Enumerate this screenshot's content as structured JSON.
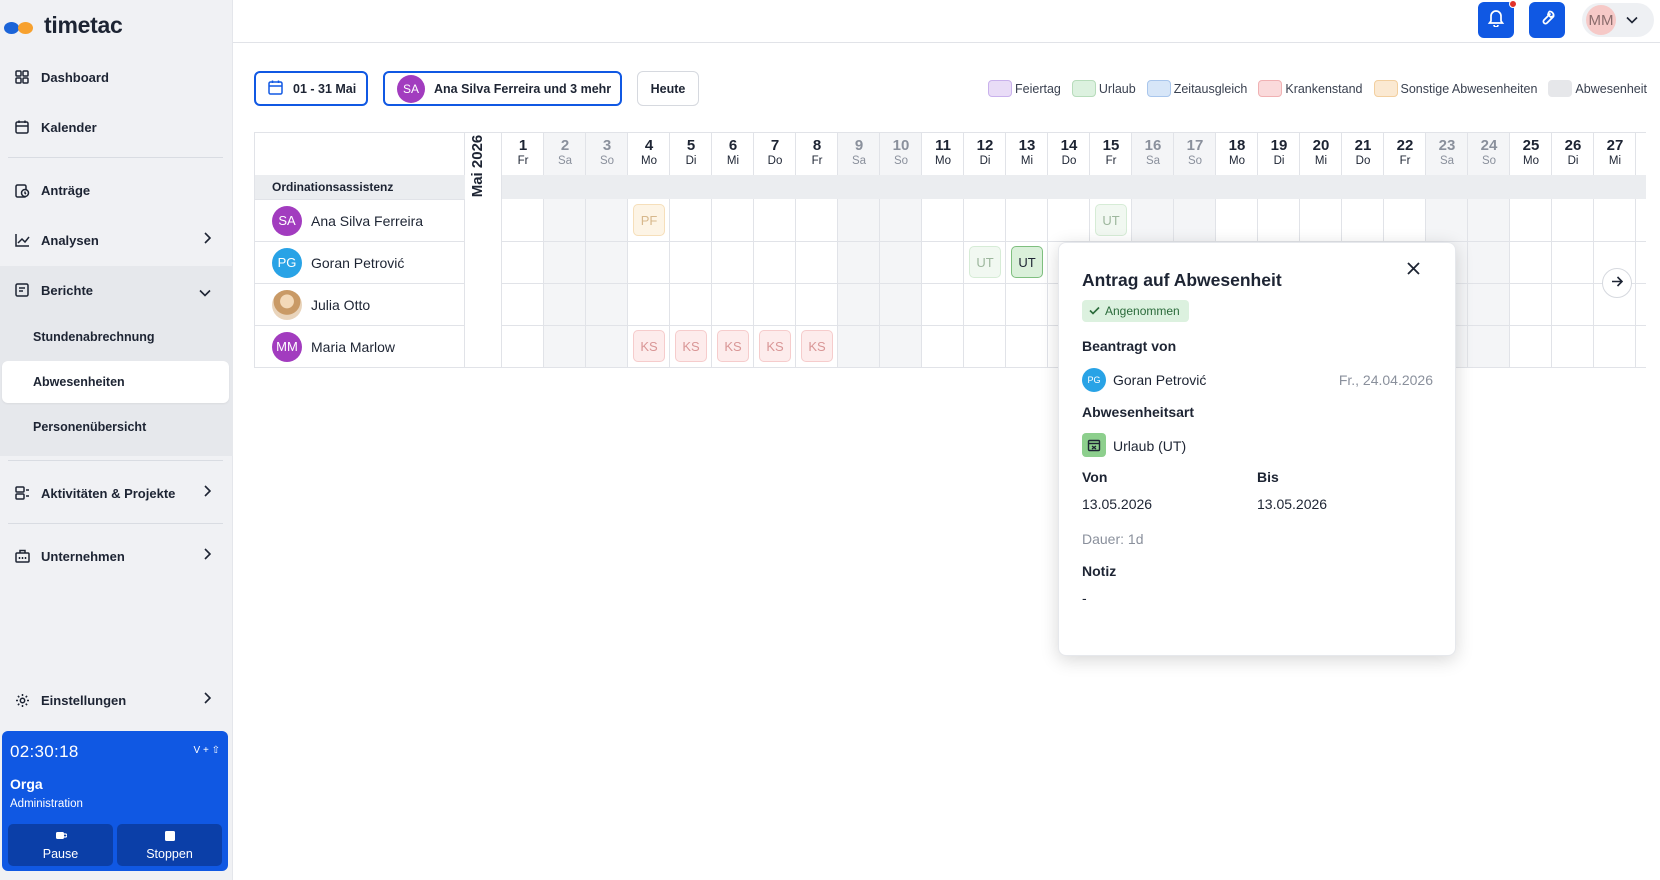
{
  "app": {
    "logo_text": "timetac"
  },
  "colors": {
    "accent": "#1058e3",
    "feiertag": "#e9dcf7",
    "urlaub": "#dcf1df",
    "zeitausgleich": "#d7e6f8",
    "krankenstand": "#fadadb",
    "sonstige": "#fbe9d2",
    "abwesenheit": "#e6e7ea"
  },
  "sidebar": {
    "items": [
      {
        "label": "Dashboard",
        "icon": "dashboard-icon"
      },
      {
        "label": "Kalender",
        "icon": "calendar-icon"
      },
      {
        "label": "Anträge",
        "icon": "requests-icon"
      },
      {
        "label": "Analysen",
        "icon": "chart-icon"
      },
      {
        "label": "Berichte",
        "icon": "report-icon"
      },
      {
        "label": "Aktivitäten & Projekte",
        "icon": "activities-icon"
      },
      {
        "label": "Unternehmen",
        "icon": "building-icon"
      },
      {
        "label": "Einstellungen",
        "icon": "gear-icon"
      }
    ],
    "berichte_sub": [
      {
        "label": "Stundenabrechnung"
      },
      {
        "label": "Abwesenheiten",
        "active": true
      },
      {
        "label": "Personenübersicht"
      }
    ]
  },
  "timer": {
    "time": "02:30:18",
    "shortcut": "V + ⇧",
    "org": "Orga",
    "role": "Administration",
    "pause_label": "Pause",
    "stop_label": "Stoppen"
  },
  "topbar": {
    "user_initials": "MM"
  },
  "filters": {
    "date_range": "01 - 31 Mai",
    "person_initials": "SA",
    "person_label": "Ana Silva Ferreira und 3 mehr",
    "today_label": "Heute"
  },
  "legend": [
    {
      "label": "Feiertag",
      "fill": "#e9dcf7",
      "border": "#c9b1ec"
    },
    {
      "label": "Urlaub",
      "fill": "#dcf1df",
      "border": "#b7dcbb"
    },
    {
      "label": "Zeitausgleich",
      "fill": "#d7e6f8",
      "border": "#a9c6ec"
    },
    {
      "label": "Krankenstand",
      "fill": "#fadadb",
      "border": "#f0b1b3"
    },
    {
      "label": "Sonstige Abwesenheiten",
      "fill": "#fbe9d2",
      "border": "#f2cf9f"
    },
    {
      "label": "Abwesenheit",
      "fill": "#e6e7ea",
      "border": "#e6e7ea"
    }
  ],
  "calendar": {
    "month_label": "Mai 2026",
    "group_label": "Ordinationsassistenz",
    "days": [
      {
        "n": "1",
        "wd": "Fr"
      },
      {
        "n": "2",
        "wd": "Sa",
        "we": true
      },
      {
        "n": "3",
        "wd": "So",
        "we": true
      },
      {
        "n": "4",
        "wd": "Mo"
      },
      {
        "n": "5",
        "wd": "Di"
      },
      {
        "n": "6",
        "wd": "Mi"
      },
      {
        "n": "7",
        "wd": "Do"
      },
      {
        "n": "8",
        "wd": "Fr"
      },
      {
        "n": "9",
        "wd": "Sa",
        "we": true
      },
      {
        "n": "10",
        "wd": "So",
        "we": true
      },
      {
        "n": "11",
        "wd": "Mo"
      },
      {
        "n": "12",
        "wd": "Di"
      },
      {
        "n": "13",
        "wd": "Mi"
      },
      {
        "n": "14",
        "wd": "Do"
      },
      {
        "n": "15",
        "wd": "Fr"
      },
      {
        "n": "16",
        "wd": "Sa",
        "we": true
      },
      {
        "n": "17",
        "wd": "So",
        "we": true
      },
      {
        "n": "18",
        "wd": "Mo"
      },
      {
        "n": "19",
        "wd": "Di"
      },
      {
        "n": "20",
        "wd": "Mi"
      },
      {
        "n": "21",
        "wd": "Do"
      },
      {
        "n": "22",
        "wd": "Fr"
      },
      {
        "n": "23",
        "wd": "Sa",
        "we": true
      },
      {
        "n": "24",
        "wd": "So",
        "we": true
      },
      {
        "n": "25",
        "wd": "Mo"
      },
      {
        "n": "26",
        "wd": "Di"
      },
      {
        "n": "27",
        "wd": "Mi"
      }
    ],
    "people": [
      {
        "initials": "SA",
        "name": "Ana Silva Ferreira",
        "color": "#a23cbf"
      },
      {
        "initials": "PG",
        "name": "Goran Petrović",
        "color": "#29a3e6"
      },
      {
        "initials": "",
        "name": "Julia Otto",
        "color": "#d9b48a"
      },
      {
        "initials": "MM",
        "name": "Maria Marlow",
        "color": "#a23cbf"
      }
    ],
    "entries": [
      {
        "person": 0,
        "day": 4,
        "code": "PF",
        "style": "pf"
      },
      {
        "person": 0,
        "day": 15,
        "code": "UT",
        "style": "ut-faded"
      },
      {
        "person": 1,
        "day": 12,
        "code": "UT",
        "style": "ut-faded"
      },
      {
        "person": 1,
        "day": 13,
        "code": "UT",
        "style": "ut-strong"
      },
      {
        "person": 3,
        "day": 4,
        "code": "KS",
        "style": "ks"
      },
      {
        "person": 3,
        "day": 5,
        "code": "KS",
        "style": "ks"
      },
      {
        "person": 3,
        "day": 6,
        "code": "KS",
        "style": "ks"
      },
      {
        "person": 3,
        "day": 7,
        "code": "KS",
        "style": "ks"
      },
      {
        "person": 3,
        "day": 8,
        "code": "KS",
        "style": "ks"
      }
    ]
  },
  "popover": {
    "title": "Antrag auf Abwesenheit",
    "status": "Angenommen",
    "requested_by_label": "Beantragt von",
    "requester_initials": "PG",
    "requester_name": "Goran Petrović",
    "requested_date": "Fr., 24.04.2026",
    "type_label": "Abwesenheitsart",
    "type_value": "Urlaub (UT)",
    "from_label": "Von",
    "from_value": "13.05.2026",
    "to_label": "Bis",
    "to_value": "13.05.2026",
    "duration": "Dauer: 1d",
    "note_label": "Notiz",
    "note_value": "-"
  }
}
